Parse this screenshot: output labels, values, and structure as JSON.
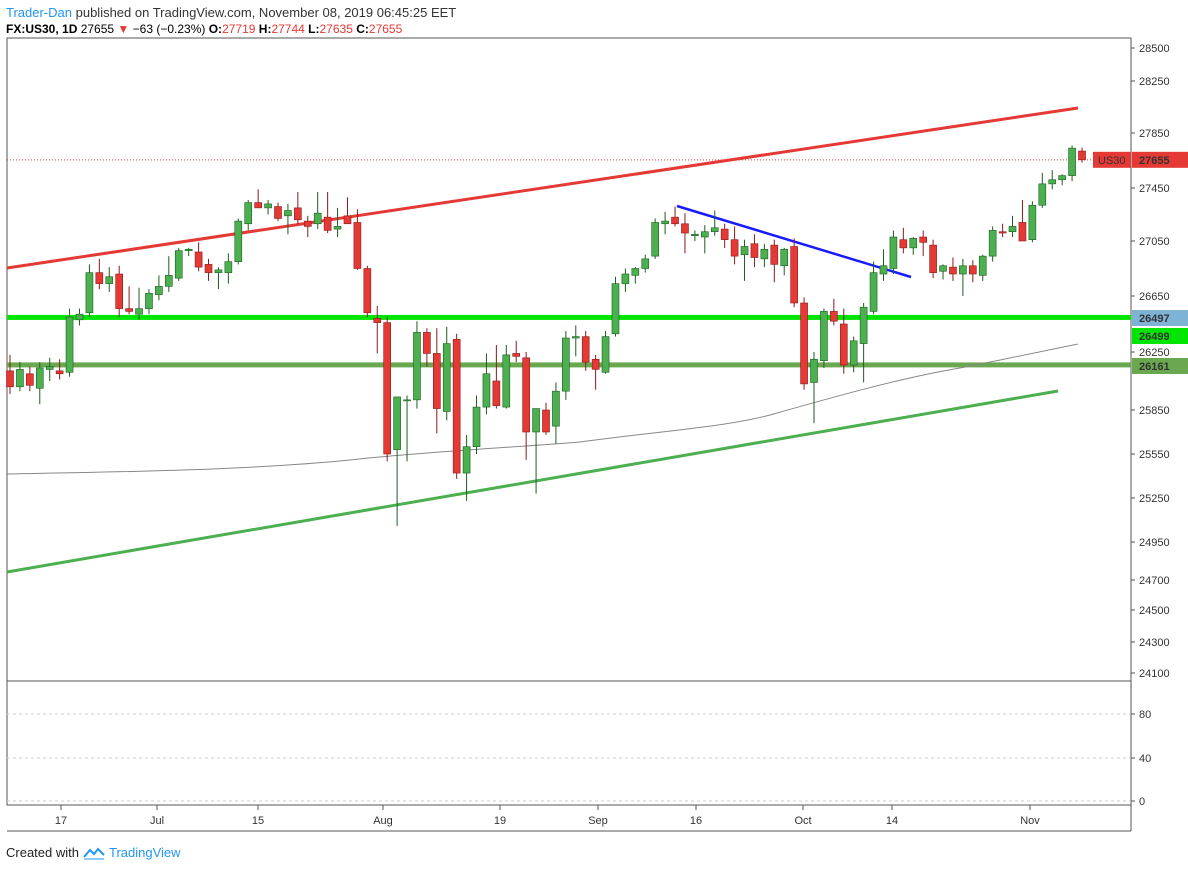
{
  "header": {
    "author": "Trader-Dan",
    "published_text": "published on TradingView.com, November 08, 2019 06:45:25 EET",
    "symbol": "FX:US30, 1D",
    "last": "27655",
    "change": "−63 (−0.23%)",
    "open_label": "O:",
    "open": "27719",
    "high_label": "H:",
    "high": "27744",
    "low_label": "L:",
    "low": "27635",
    "close_label": "C:",
    "close": "27655"
  },
  "footer": {
    "created_with": "Created with",
    "brand": "TradingView"
  },
  "colors": {
    "up": "#4caf50",
    "down": "#e53935",
    "up_border": "#1b5e20",
    "down_border": "#8b1a1a",
    "resistance": "#e53935",
    "support": "#4caf50",
    "downtrend": "#1a1aff",
    "hline_bright": "#00e600",
    "hline_dark": "#6aa84f",
    "ma": "#888888"
  },
  "chart_data": {
    "type": "candlestick",
    "symbol": "FX:US30",
    "interval": "1D",
    "ylim": [
      23950,
      28560
    ],
    "y_ticks": [
      "28500",
      "28250",
      "27850",
      "27450",
      "27050",
      "26650",
      "26250",
      "25850",
      "25550",
      "25250",
      "24950",
      "24700",
      "24500",
      "24300",
      "24100"
    ],
    "x_labels": [
      {
        "label": "17",
        "bar": 3
      },
      {
        "label": "Jul",
        "bar": 13
      },
      {
        "label": "15",
        "bar": 23
      },
      {
        "label": "Aug",
        "bar": 35
      },
      {
        "label": "19",
        "bar": 46
      },
      {
        "label": "Sep",
        "bar": 56
      },
      {
        "label": "16",
        "bar": 65
      },
      {
        "label": "Oct",
        "bar": 75
      },
      {
        "label": "14",
        "bar": 84
      },
      {
        "label": "Nov",
        "bar": 97
      }
    ],
    "candles": [
      {
        "o": 26120,
        "h": 26230,
        "l": 25960,
        "c": 26010
      },
      {
        "o": 26010,
        "h": 26180,
        "l": 25980,
        "c": 26130
      },
      {
        "o": 26100,
        "h": 26150,
        "l": 25980,
        "c": 26020
      },
      {
        "o": 26000,
        "h": 26180,
        "l": 25890,
        "c": 26140
      },
      {
        "o": 26130,
        "h": 26210,
        "l": 26050,
        "c": 26150
      },
      {
        "o": 26120,
        "h": 26200,
        "l": 26060,
        "c": 26100
      },
      {
        "o": 26110,
        "h": 26560,
        "l": 26080,
        "c": 26500
      },
      {
        "o": 26480,
        "h": 26560,
        "l": 26440,
        "c": 26520
      },
      {
        "o": 26530,
        "h": 26880,
        "l": 26500,
        "c": 26820
      },
      {
        "o": 26820,
        "h": 26920,
        "l": 26700,
        "c": 26740
      },
      {
        "o": 26740,
        "h": 26860,
        "l": 26680,
        "c": 26790
      },
      {
        "o": 26810,
        "h": 26870,
        "l": 26500,
        "c": 26560
      },
      {
        "o": 26560,
        "h": 26720,
        "l": 26520,
        "c": 26540
      },
      {
        "o": 26520,
        "h": 26710,
        "l": 26480,
        "c": 26560
      },
      {
        "o": 26560,
        "h": 26700,
        "l": 26520,
        "c": 26670
      },
      {
        "o": 26660,
        "h": 26800,
        "l": 26620,
        "c": 26720
      },
      {
        "o": 26720,
        "h": 26940,
        "l": 26680,
        "c": 26800
      },
      {
        "o": 26780,
        "h": 27000,
        "l": 26760,
        "c": 26980
      },
      {
        "o": 26980,
        "h": 27000,
        "l": 26940,
        "c": 26990
      },
      {
        "o": 26970,
        "h": 27040,
        "l": 26830,
        "c": 26860
      },
      {
        "o": 26880,
        "h": 26920,
        "l": 26760,
        "c": 26820
      },
      {
        "o": 26820,
        "h": 26860,
        "l": 26700,
        "c": 26840
      },
      {
        "o": 26820,
        "h": 26960,
        "l": 26740,
        "c": 26900
      },
      {
        "o": 26900,
        "h": 27220,
        "l": 26880,
        "c": 27200
      },
      {
        "o": 27180,
        "h": 27360,
        "l": 27130,
        "c": 27340
      },
      {
        "o": 27340,
        "h": 27440,
        "l": 27320,
        "c": 27300
      },
      {
        "o": 27300,
        "h": 27360,
        "l": 27250,
        "c": 27330
      },
      {
        "o": 27310,
        "h": 27340,
        "l": 27200,
        "c": 27220
      },
      {
        "o": 27240,
        "h": 27330,
        "l": 27100,
        "c": 27280
      },
      {
        "o": 27300,
        "h": 27420,
        "l": 27180,
        "c": 27210
      },
      {
        "o": 27200,
        "h": 27240,
        "l": 27080,
        "c": 27160
      },
      {
        "o": 27180,
        "h": 27420,
        "l": 27140,
        "c": 27260
      },
      {
        "o": 27230,
        "h": 27420,
        "l": 27110,
        "c": 27130
      },
      {
        "o": 27140,
        "h": 27300,
        "l": 27080,
        "c": 27160
      },
      {
        "o": 27240,
        "h": 27380,
        "l": 27200,
        "c": 27180
      },
      {
        "o": 27190,
        "h": 27290,
        "l": 26840,
        "c": 26850
      },
      {
        "o": 26850,
        "h": 26870,
        "l": 26500,
        "c": 26530
      },
      {
        "o": 26490,
        "h": 26580,
        "l": 26240,
        "c": 26460
      },
      {
        "o": 26460,
        "h": 26500,
        "l": 25500,
        "c": 25550
      },
      {
        "o": 25580,
        "h": 25900,
        "l": 25060,
        "c": 25940
      },
      {
        "o": 25920,
        "h": 25950,
        "l": 25500,
        "c": 25920
      },
      {
        "o": 25920,
        "h": 26470,
        "l": 25860,
        "c": 26390
      },
      {
        "o": 26390,
        "h": 26420,
        "l": 26150,
        "c": 26240
      },
      {
        "o": 26240,
        "h": 26420,
        "l": 25690,
        "c": 25860
      },
      {
        "o": 25840,
        "h": 26430,
        "l": 25780,
        "c": 26310
      },
      {
        "o": 26340,
        "h": 26380,
        "l": 25380,
        "c": 25420
      },
      {
        "o": 25420,
        "h": 25680,
        "l": 25230,
        "c": 25600
      },
      {
        "o": 25600,
        "h": 25950,
        "l": 25550,
        "c": 25870
      },
      {
        "o": 25870,
        "h": 26240,
        "l": 25820,
        "c": 26100
      },
      {
        "o": 26050,
        "h": 26300,
        "l": 25860,
        "c": 25880
      },
      {
        "o": 25870,
        "h": 26300,
        "l": 25860,
        "c": 26230
      },
      {
        "o": 26240,
        "h": 26330,
        "l": 26180,
        "c": 26220
      },
      {
        "o": 26210,
        "h": 26250,
        "l": 25510,
        "c": 25700
      },
      {
        "o": 25700,
        "h": 25860,
        "l": 25280,
        "c": 25860
      },
      {
        "o": 25850,
        "h": 25900,
        "l": 25680,
        "c": 25700
      },
      {
        "o": 25740,
        "h": 26040,
        "l": 25620,
        "c": 25980
      },
      {
        "o": 25980,
        "h": 26400,
        "l": 25920,
        "c": 26350
      },
      {
        "o": 26350,
        "h": 26440,
        "l": 26220,
        "c": 26360
      },
      {
        "o": 26360,
        "h": 26400,
        "l": 26120,
        "c": 26180
      },
      {
        "o": 26200,
        "h": 26230,
        "l": 25990,
        "c": 26130
      },
      {
        "o": 26110,
        "h": 26400,
        "l": 26100,
        "c": 26360
      },
      {
        "o": 26380,
        "h": 26790,
        "l": 26360,
        "c": 26740
      },
      {
        "o": 26740,
        "h": 26850,
        "l": 26680,
        "c": 26810
      },
      {
        "o": 26800,
        "h": 26860,
        "l": 26740,
        "c": 26850
      },
      {
        "o": 26850,
        "h": 26950,
        "l": 26820,
        "c": 26920
      },
      {
        "o": 26940,
        "h": 27220,
        "l": 26920,
        "c": 27190
      },
      {
        "o": 27180,
        "h": 27270,
        "l": 27100,
        "c": 27200
      },
      {
        "o": 27230,
        "h": 27310,
        "l": 27160,
        "c": 27180
      },
      {
        "o": 27180,
        "h": 27260,
        "l": 26960,
        "c": 27110
      },
      {
        "o": 27090,
        "h": 27130,
        "l": 27050,
        "c": 27100
      },
      {
        "o": 27080,
        "h": 27170,
        "l": 26960,
        "c": 27120
      },
      {
        "o": 27120,
        "h": 27280,
        "l": 27090,
        "c": 27150
      },
      {
        "o": 27140,
        "h": 27180,
        "l": 27000,
        "c": 27060
      },
      {
        "o": 27060,
        "h": 27160,
        "l": 26880,
        "c": 26940
      },
      {
        "o": 26950,
        "h": 27060,
        "l": 26760,
        "c": 27010
      },
      {
        "o": 27030,
        "h": 27100,
        "l": 26860,
        "c": 26930
      },
      {
        "o": 26920,
        "h": 27030,
        "l": 26860,
        "c": 26990
      },
      {
        "o": 27020,
        "h": 27060,
        "l": 26750,
        "c": 26880
      },
      {
        "o": 26870,
        "h": 27000,
        "l": 26800,
        "c": 26990
      },
      {
        "o": 27010,
        "h": 27070,
        "l": 26570,
        "c": 26600
      },
      {
        "o": 26600,
        "h": 26640,
        "l": 25990,
        "c": 26030
      },
      {
        "o": 26040,
        "h": 26250,
        "l": 25760,
        "c": 26200
      },
      {
        "o": 26190,
        "h": 26560,
        "l": 26140,
        "c": 26540
      },
      {
        "o": 26540,
        "h": 26630,
        "l": 26440,
        "c": 26470
      },
      {
        "o": 26450,
        "h": 26560,
        "l": 26100,
        "c": 26160
      },
      {
        "o": 26160,
        "h": 26360,
        "l": 26110,
        "c": 26330
      },
      {
        "o": 26310,
        "h": 26600,
        "l": 26040,
        "c": 26570
      },
      {
        "o": 26540,
        "h": 26900,
        "l": 26520,
        "c": 26820
      },
      {
        "o": 26810,
        "h": 26990,
        "l": 26760,
        "c": 26870
      },
      {
        "o": 26850,
        "h": 27130,
        "l": 26810,
        "c": 27080
      },
      {
        "o": 27060,
        "h": 27150,
        "l": 26960,
        "c": 27000
      },
      {
        "o": 27000,
        "h": 27080,
        "l": 26950,
        "c": 27070
      },
      {
        "o": 27080,
        "h": 27130,
        "l": 26940,
        "c": 27040
      },
      {
        "o": 27020,
        "h": 27060,
        "l": 26780,
        "c": 26820
      },
      {
        "o": 26830,
        "h": 26880,
        "l": 26770,
        "c": 26870
      },
      {
        "o": 26860,
        "h": 26930,
        "l": 26760,
        "c": 26810
      },
      {
        "o": 26810,
        "h": 26920,
        "l": 26650,
        "c": 26870
      }
    ],
    "recent_candles": [
      {
        "o": 26870,
        "h": 26910,
        "l": 26750,
        "c": 26810
      },
      {
        "o": 26800,
        "h": 26950,
        "l": 26760,
        "c": 26940
      },
      {
        "o": 26940,
        "h": 27160,
        "l": 26900,
        "c": 27130
      },
      {
        "o": 27120,
        "h": 27180,
        "l": 27080,
        "c": 27110
      },
      {
        "o": 27120,
        "h": 27240,
        "l": 27080,
        "c": 27160
      },
      {
        "o": 27190,
        "h": 27360,
        "l": 27050,
        "c": 27050
      },
      {
        "o": 27060,
        "h": 27350,
        "l": 27040,
        "c": 27320
      },
      {
        "o": 27320,
        "h": 27560,
        "l": 27300,
        "c": 27480
      },
      {
        "o": 27480,
        "h": 27580,
        "l": 27440,
        "c": 27510
      },
      {
        "o": 27510,
        "h": 27550,
        "l": 27470,
        "c": 27540
      },
      {
        "o": 27540,
        "h": 27760,
        "l": 27500,
        "c": 27740
      },
      {
        "o": 27719,
        "h": 27744,
        "l": 27635,
        "c": 27655
      }
    ],
    "levels": [
      {
        "label": "26497",
        "value": 26497,
        "color": "#00e600",
        "label_bg": "#7fb3d5"
      },
      {
        "label": "26499",
        "value": 26499,
        "color": "#00e600",
        "label_bg": "#00e600"
      },
      {
        "label": "26161",
        "value": 26161,
        "color": "#6aa84f",
        "label_bg": "#6aa84f"
      }
    ],
    "price_label": {
      "name": "US30",
      "value": "27655"
    },
    "oscillator_ticks": [
      "80",
      "40",
      "0"
    ]
  }
}
